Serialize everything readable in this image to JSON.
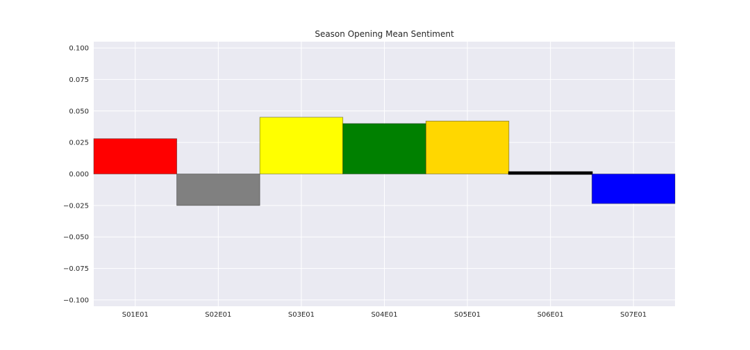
{
  "chart_data": {
    "type": "bar",
    "title": "Season Opening Mean Sentiment",
    "xlabel": "",
    "ylabel": "",
    "categories": [
      "S01E01",
      "S02E01",
      "S03E01",
      "S04E01",
      "S05E01",
      "S06E01",
      "S07E01"
    ],
    "values": [
      0.028,
      -0.025,
      0.045,
      0.04,
      0.042,
      0.0015,
      -0.0235
    ],
    "colors": [
      "#ff0000",
      "#808080",
      "#ffff00",
      "#008000",
      "#ffd700",
      "#000000",
      "#0000ff"
    ],
    "ylim": [
      -0.105,
      0.105
    ],
    "yticks": [
      0.1,
      0.075,
      0.05,
      0.025,
      0.0,
      -0.025,
      -0.05,
      -0.075,
      -0.1
    ],
    "ytick_labels": [
      "0.100",
      "0.075",
      "0.050",
      "0.025",
      "0.000",
      "−0.025",
      "−0.050",
      "−0.075",
      "−0.100"
    ],
    "grid": true,
    "background": "#eaeaf2"
  }
}
